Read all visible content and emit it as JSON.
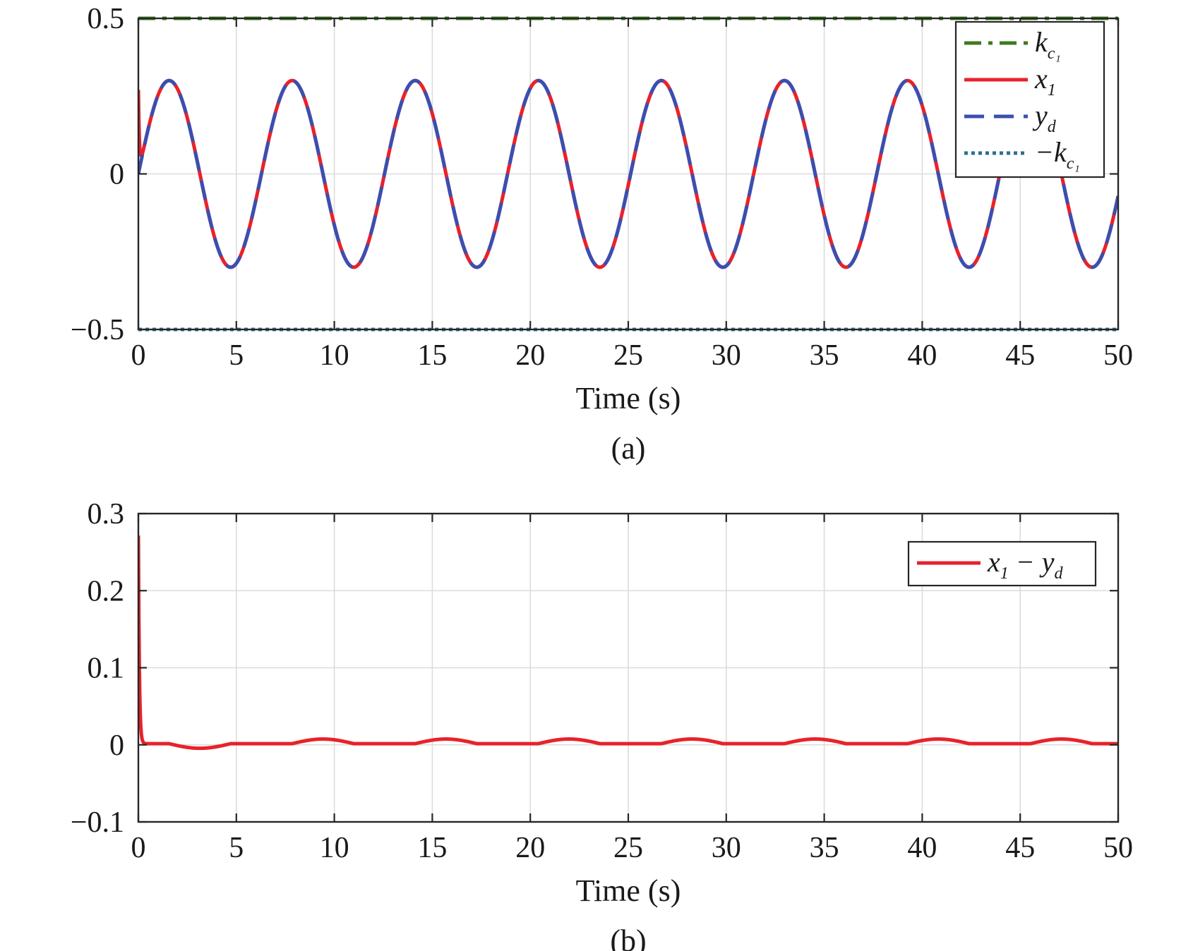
{
  "chart_data": [
    {
      "panel": "a",
      "panel_label": "(a)",
      "type": "line",
      "xlabel": "Time (s)",
      "ylabel": "",
      "xlim": [
        0,
        50
      ],
      "ylim": [
        -0.5,
        0.5
      ],
      "xticks": [
        0,
        5,
        10,
        15,
        20,
        25,
        30,
        35,
        40,
        45,
        50
      ],
      "xtick_labels": [
        "0",
        "5",
        "10",
        "15",
        "20",
        "25",
        "30",
        "35",
        "40",
        "45",
        "50"
      ],
      "yticks": [
        -0.5,
        0,
        0.5
      ],
      "ytick_labels": [
        "−0.5",
        "0",
        "0.5"
      ],
      "grid": true,
      "legend_position": "top-right",
      "series": [
        {
          "legend_main": "k",
          "legend_sub": "c₁",
          "color": "#3f7a22",
          "style": "dashdot",
          "kind": "constant",
          "value": 0.5
        },
        {
          "legend_main": "x",
          "legend_sub": "1",
          "color": "#e8222b",
          "style": "solid",
          "kind": "tracking",
          "amplitude": 0.3,
          "period": 6.28,
          "initial_value": 0.27
        },
        {
          "legend_main": "y",
          "legend_sub": "d",
          "color": "#3a4fb0",
          "style": "dashed",
          "kind": "sine",
          "amplitude": 0.3,
          "period": 6.28
        },
        {
          "legend_main": "−k",
          "legend_sub": "c₁",
          "color": "#2e6f8e",
          "style": "dotted",
          "kind": "constant",
          "value": -0.5
        }
      ]
    },
    {
      "panel": "b",
      "panel_label": "(b)",
      "type": "line",
      "xlabel": "Time (s)",
      "ylabel": "",
      "xlim": [
        0,
        50
      ],
      "ylim": [
        -0.1,
        0.3
      ],
      "xticks": [
        0,
        5,
        10,
        15,
        20,
        25,
        30,
        35,
        40,
        45,
        50
      ],
      "xtick_labels": [
        "0",
        "5",
        "10",
        "15",
        "20",
        "25",
        "30",
        "35",
        "40",
        "45",
        "50"
      ],
      "yticks": [
        -0.1,
        0,
        0.1,
        0.2,
        0.3
      ],
      "ytick_labels": [
        "−0.1",
        "0",
        "0.1",
        "0.2",
        "0.3"
      ],
      "grid": true,
      "legend_position": "top-right",
      "series": [
        {
          "legend_main": "x",
          "legend_sub": "1",
          "legend_rest": " − y",
          "legend_sub2": "d",
          "color": "#e8222b",
          "style": "solid",
          "kind": "error",
          "initial_value": 0.27,
          "bump_amplitude": 0.006,
          "dip_amplitude": -0.006
        }
      ]
    }
  ]
}
